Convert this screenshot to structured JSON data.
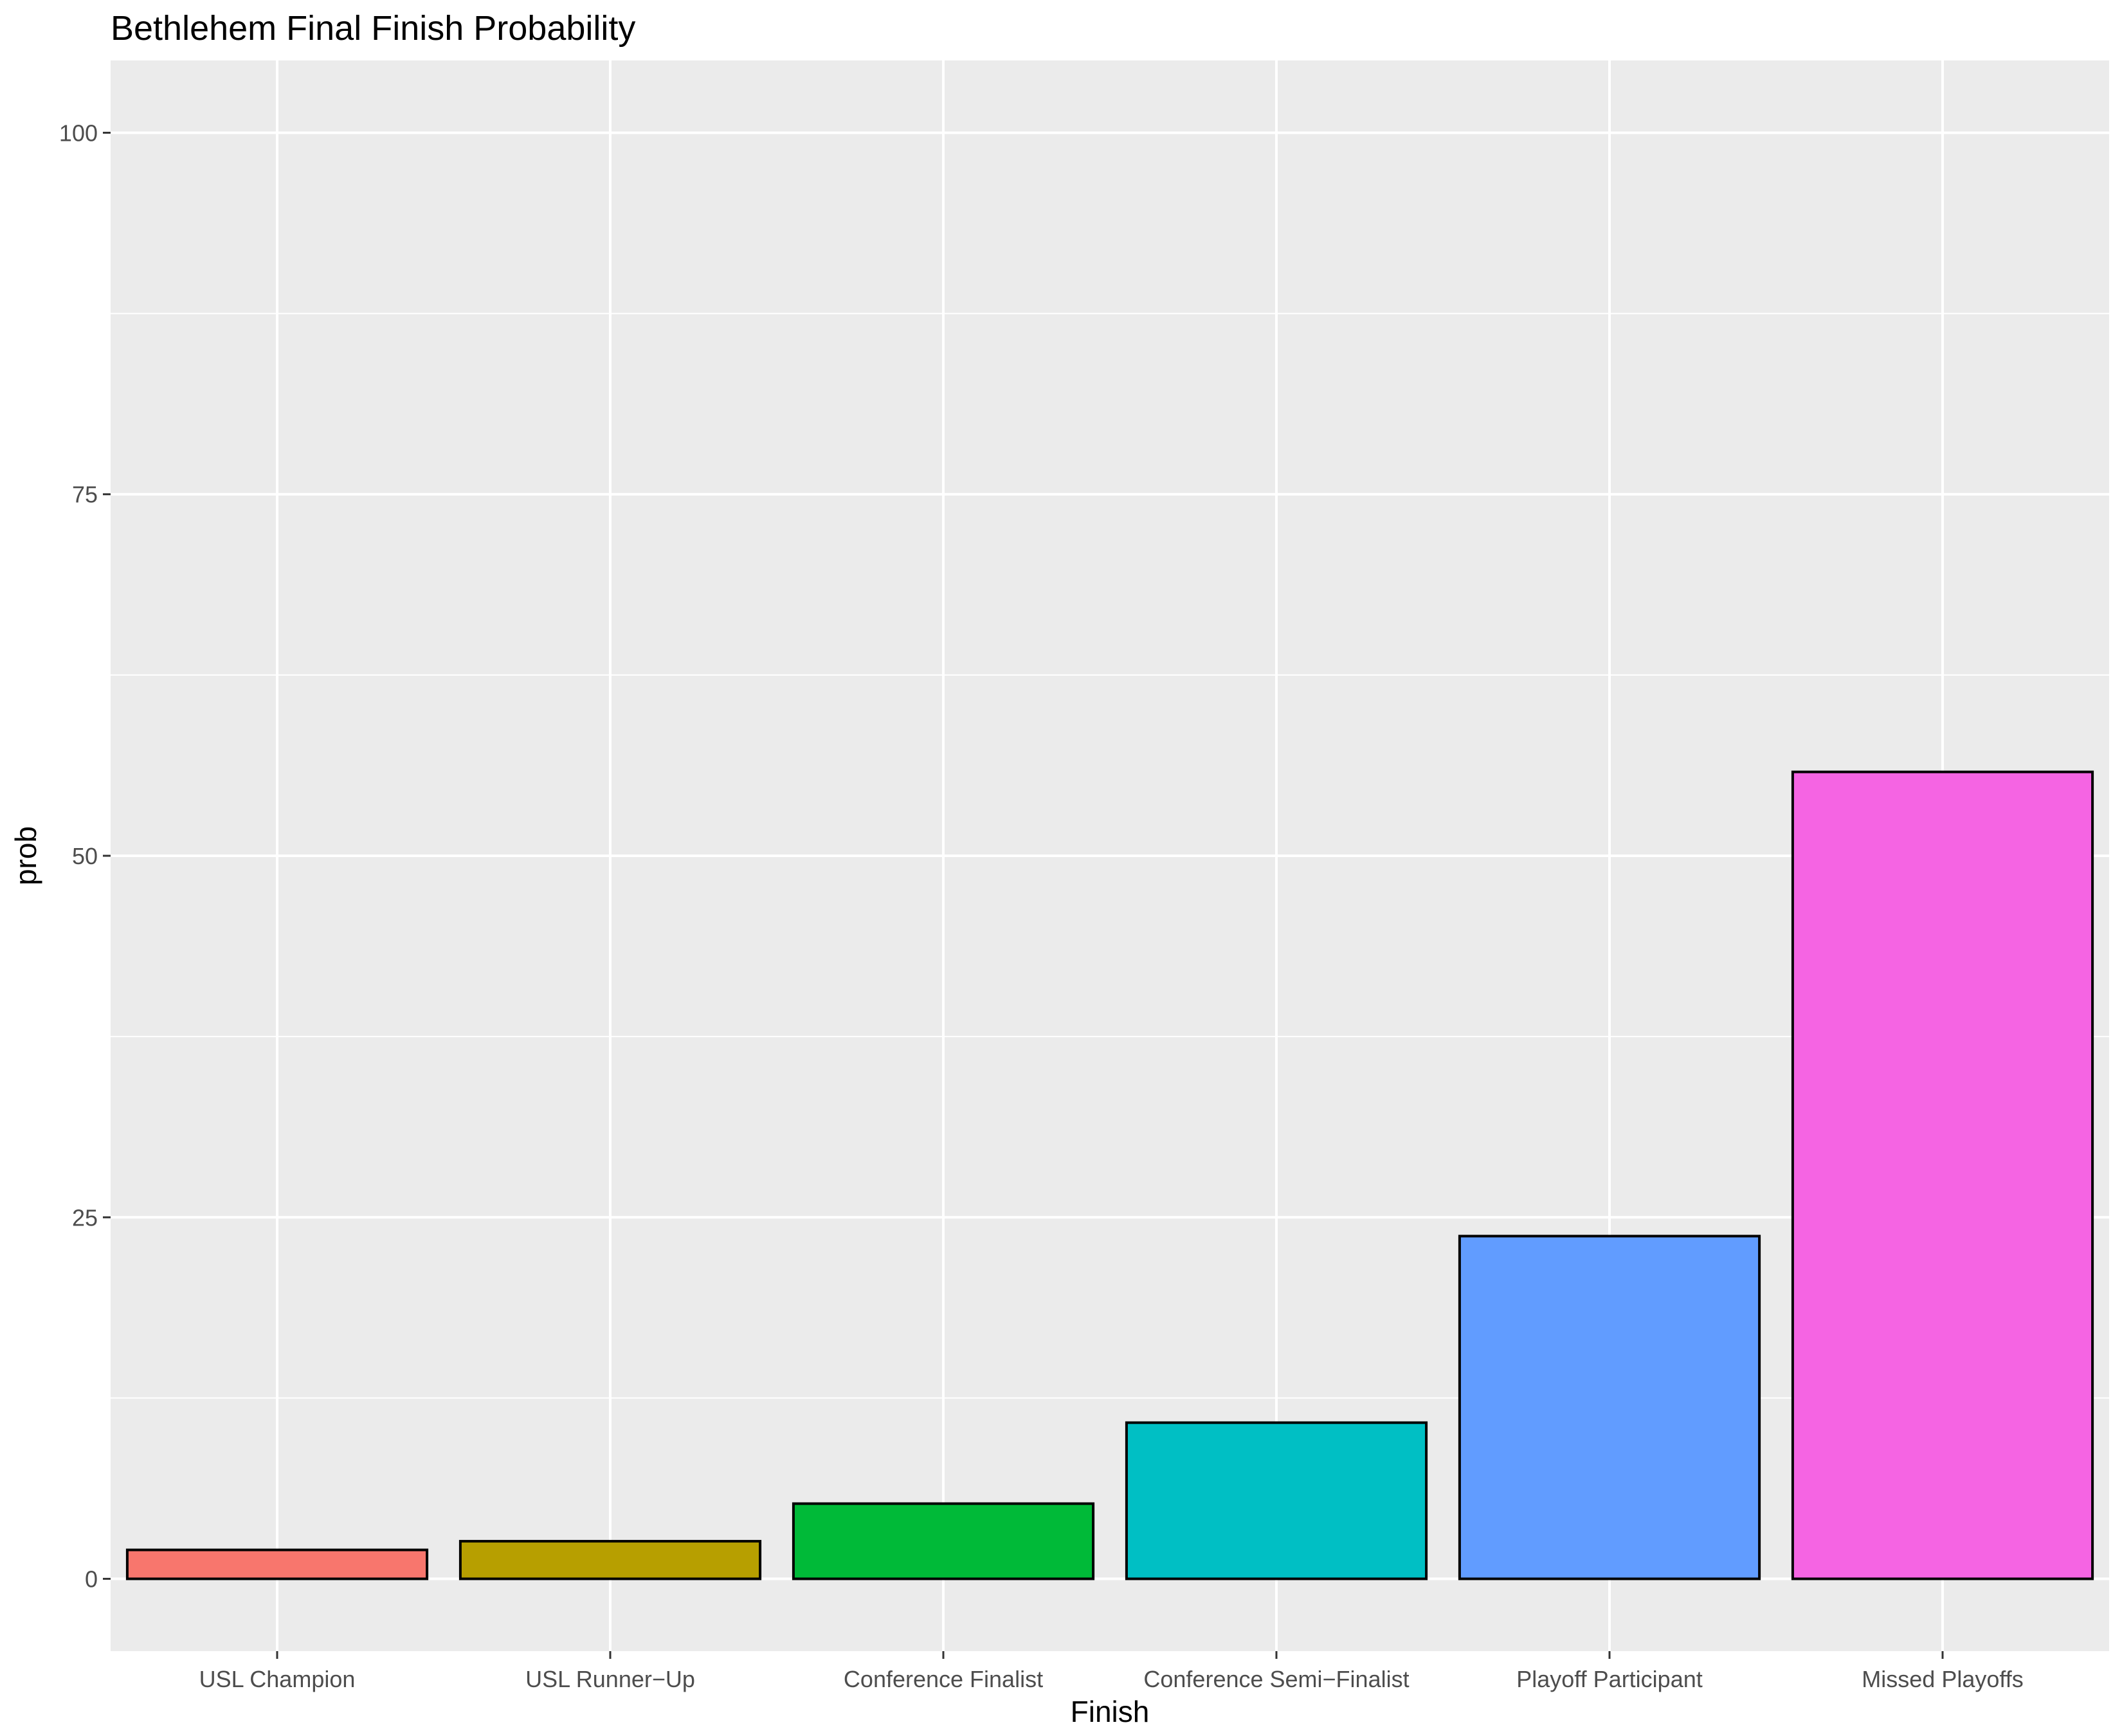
{
  "chart_data": {
    "type": "bar",
    "title": "Bethlehem Final Finish Probability",
    "xlabel": "Finish",
    "ylabel": "prob",
    "categories": [
      "USL Champion",
      "USL Runner−Up",
      "Conference Finalist",
      "Conference Semi−Finalist",
      "Playoff Participant",
      "Missed Playoffs"
    ],
    "values": [
      2.0,
      2.6,
      5.2,
      10.8,
      23.7,
      55.8
    ],
    "colors": [
      "#F8766D",
      "#B79F00",
      "#00BA38",
      "#00BFC4",
      "#619CFF",
      "#F564E3"
    ],
    "ylim": [
      -5,
      105
    ],
    "yticks": [
      0,
      25,
      50,
      75,
      100
    ],
    "ytick_labels": [
      "0",
      "25",
      "50",
      "75",
      "100"
    ],
    "grid": true,
    "legend": "none",
    "panel_background": "#EBEBEB",
    "grid_color": "#FFFFFF",
    "bar_outline": "#000000"
  }
}
